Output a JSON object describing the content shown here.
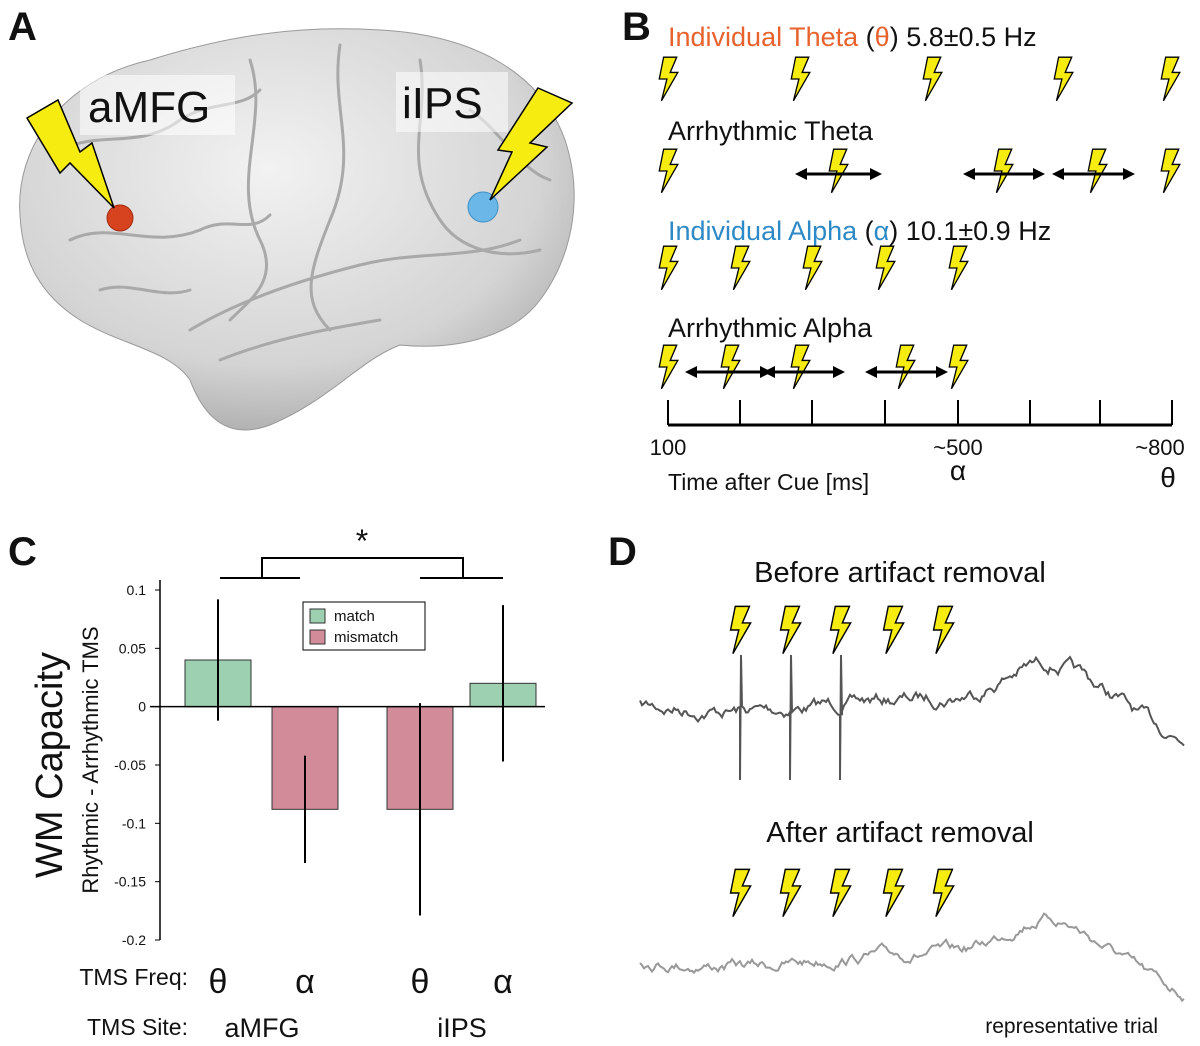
{
  "panels": [
    "A",
    "B",
    "C",
    "D"
  ],
  "panel_a": {
    "labels": [
      "aMFG",
      "iIPS"
    ]
  },
  "panel_b": {
    "theta": [
      "Individual Theta",
      "(",
      "θ",
      ")",
      "5.8±0.5 Hz"
    ],
    "arrhythmic_theta": "Arrhythmic Theta",
    "alpha": [
      "Individual Alpha",
      "(",
      "α",
      ")",
      "10.1±0.9 Hz"
    ],
    "arrhythmic_alpha": "Arrhythmic Alpha",
    "axis_labels": [
      "100",
      "~500",
      "~800"
    ],
    "axis_symbols": [
      "α",
      "θ"
    ],
    "axis_title": "Time after Cue [ms]"
  },
  "chart_data": {
    "type": "bar",
    "ylabel": [
      "WM Capacity",
      "Rhythmic - Arrhythmic TMS"
    ],
    "categories": [
      "θ",
      "α",
      "θ",
      "α"
    ],
    "groups": [
      "aMFG",
      "iIPS"
    ],
    "row_labels": [
      "TMS Freq:",
      "TMS Site:"
    ],
    "annotation": "*",
    "series": [
      {
        "name": "match",
        "color": "#9dd0b0",
        "values": [
          0.04,
          null,
          null,
          0.02
        ],
        "errors": [
          0.052,
          null,
          null,
          0.067
        ]
      },
      {
        "name": "mismatch",
        "color": "#d28b98",
        "values": [
          null,
          -0.088,
          -0.088,
          null
        ],
        "errors": [
          null,
          0.046,
          0.091,
          null
        ]
      }
    ],
    "ylim": [
      -0.2,
      0.1
    ],
    "yticks": [
      -0.2,
      -0.15,
      -0.1,
      -0.05,
      0,
      0.05,
      0.1
    ],
    "legend": "top"
  },
  "panel_d": {
    "before": "Before artifact removal",
    "after": "After artifact removal",
    "note": "representative trial"
  }
}
